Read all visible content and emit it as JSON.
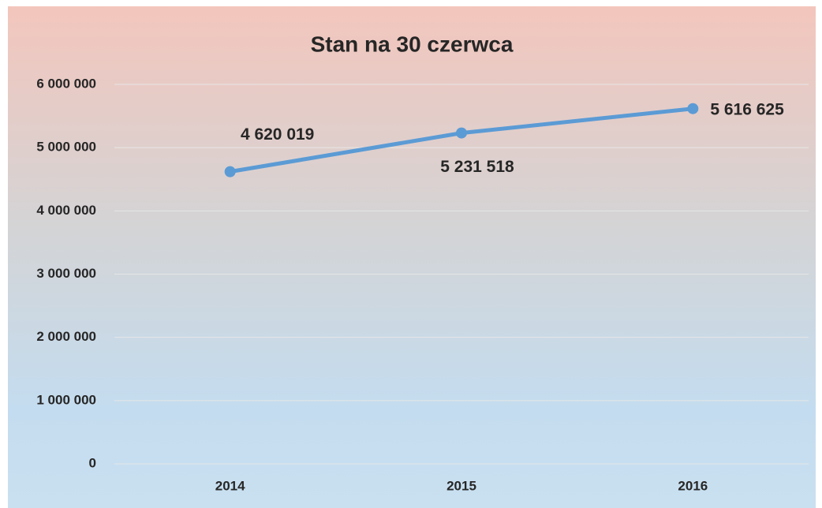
{
  "chart_data": {
    "type": "line",
    "title": "Stan na 30 czerwca",
    "categories": [
      "2014",
      "2015",
      "2016"
    ],
    "series": [
      {
        "color": "#5b9bd5",
        "values": [
          4620019,
          5231518,
          5616625
        ],
        "value_labels": [
          "4 620 019",
          "5 231 518",
          "5 616 625"
        ]
      }
    ],
    "ylim": [
      0,
      6000000
    ],
    "yticks": [
      0,
      {
        "value": 1000000,
        "label": "1 000 000"
      },
      {
        "value": 2000000,
        "label": "2 000 000"
      },
      {
        "value": 3000000,
        "label": "3 000 000"
      },
      {
        "value": 4000000,
        "label": "4 000 000"
      },
      {
        "value": 5000000,
        "label": "5 000 000"
      },
      {
        "value": 6000000,
        "label": "6 000 000"
      }
    ],
    "grid": true
  }
}
